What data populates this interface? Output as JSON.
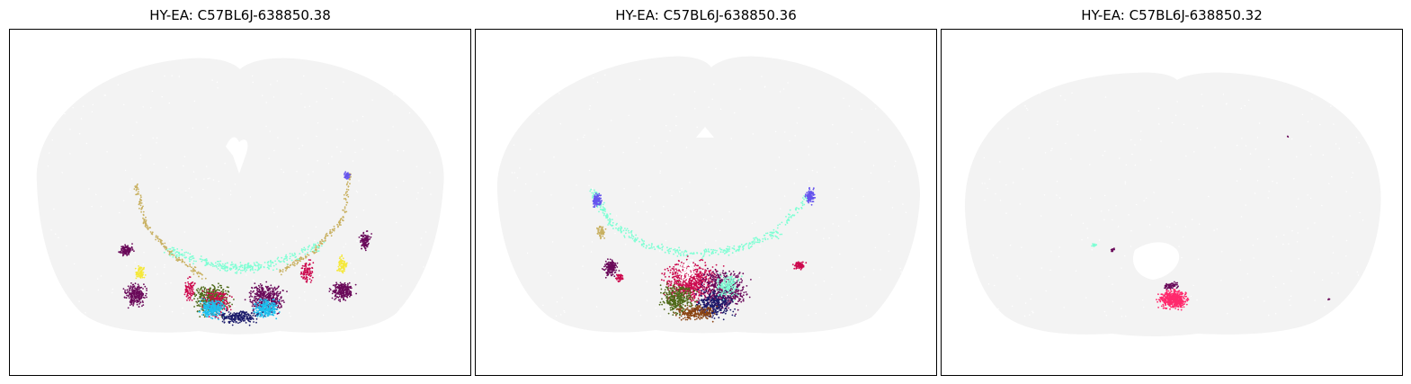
{
  "panels": [
    {
      "title": "HY-EA: C57BL6J-638850.38"
    },
    {
      "title": "HY-EA: C57BL6J-638850.36"
    },
    {
      "title": "HY-EA: C57BL6J-638850.32"
    }
  ],
  "colors": {
    "background_tissue": "#f3f3f3",
    "magenta_red": "#cc0a4e",
    "aquamarine": "#7fffd4",
    "khaki": "#c8b060",
    "dark_purple": "#6a0a5a",
    "yellow": "#f5e83a",
    "blue_violet": "#6655ee",
    "deep_sky_blue": "#1ec0ee",
    "olive_green": "#4f6a1a",
    "navy": "#1b1b6b",
    "brown": "#8b4513",
    "hot_pink": "#ff2a6d"
  }
}
